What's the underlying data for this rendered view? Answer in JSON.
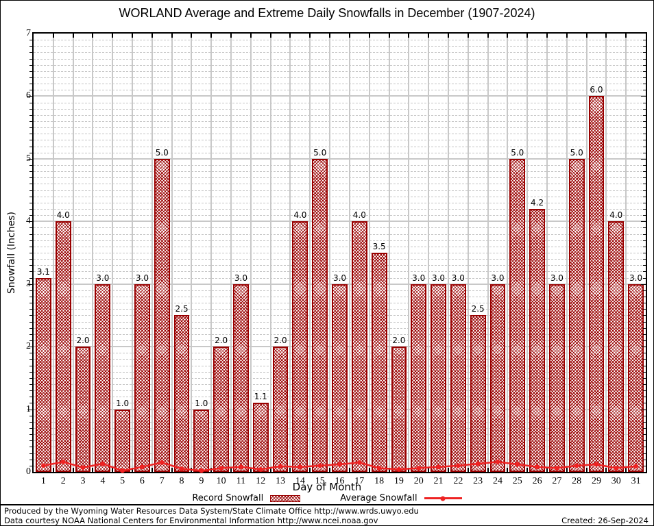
{
  "title": "WORLAND Average and Extreme Daily Snowfalls in December (1907-2024)",
  "axes": {
    "ylabel": "Snowfall (Inches)",
    "xlabel": "Day of Month"
  },
  "legend": {
    "record_label": "Record Snowfall",
    "average_label": "Average Snowfall"
  },
  "footer": {
    "line1": "Produced by the Wyoming Water Resources Data System/State Climate Office http://www.wrds.uwyo.edu",
    "line2": "Data courtesy NOAA National Centers for Environmental Information http://www.ncei.noaa.gov",
    "created": "Created: 26-Sep-2024"
  },
  "colors": {
    "bar": "#990000",
    "line": "#ee2222",
    "grid": "#c8c8c8"
  },
  "chart_data": {
    "type": "bar",
    "title": "WORLAND Average and Extreme Daily Snowfalls in December (1907-2024)",
    "xlabel": "Day of Month",
    "ylabel": "Snowfall (Inches)",
    "categories": [
      1,
      2,
      3,
      4,
      5,
      6,
      7,
      8,
      9,
      10,
      11,
      12,
      13,
      14,
      15,
      16,
      17,
      18,
      19,
      20,
      21,
      22,
      23,
      24,
      25,
      26,
      27,
      28,
      29,
      30,
      31
    ],
    "series": [
      {
        "name": "Record Snowfall",
        "type": "bar",
        "values": [
          3.1,
          4.0,
          2.0,
          3.0,
          1.0,
          3.0,
          5.0,
          2.5,
          1.0,
          2.0,
          3.0,
          1.1,
          2.0,
          4.0,
          5.0,
          3.0,
          4.0,
          3.5,
          2.0,
          3.0,
          3.0,
          3.0,
          2.5,
          3.0,
          5.0,
          4.2,
          3.0,
          5.0,
          6.0,
          4.0,
          3.0
        ]
      },
      {
        "name": "Average Snowfall",
        "type": "line",
        "values": [
          0.1,
          0.16,
          0.07,
          0.13,
          0.02,
          0.08,
          0.15,
          0.05,
          0.02,
          0.06,
          0.08,
          0.04,
          0.09,
          0.08,
          0.1,
          0.12,
          0.15,
          0.06,
          0.04,
          0.06,
          0.08,
          0.1,
          0.13,
          0.16,
          0.12,
          0.08,
          0.06,
          0.1,
          0.12,
          0.06,
          0.09
        ]
      }
    ],
    "ylim": [
      0,
      7
    ],
    "ytick_major_step": 1,
    "ytick_minor_step": 0.1,
    "grid": "major solid gray, minor dashed gray, vertical separators at day boundaries",
    "bar_value_labels": true,
    "legend_position": "bottom"
  }
}
